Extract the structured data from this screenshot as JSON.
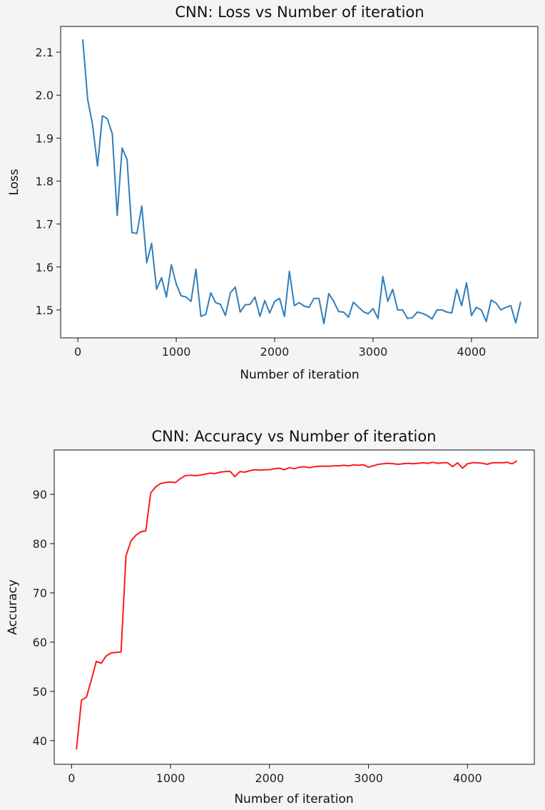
{
  "chart_data": [
    {
      "type": "line",
      "title": "CNN: Loss vs Number of iteration",
      "xlabel": "Number of iteration",
      "ylabel": "Loss",
      "xlim": [
        -175,
        4675
      ],
      "ylim": [
        1.435,
        2.16
      ],
      "xticks": [
        0,
        1000,
        2000,
        3000,
        4000
      ],
      "xtick_labels": [
        "0",
        "1000",
        "2000",
        "3000",
        "4000"
      ],
      "yticks": [
        1.5,
        1.6,
        1.7,
        1.8,
        1.9,
        2.0,
        2.1
      ],
      "ytick_labels": [
        "1.5",
        "1.6",
        "1.7",
        "1.8",
        "1.9",
        "2.0",
        "2.1"
      ],
      "grid": false,
      "color": "#2f7ebc",
      "series": [
        {
          "x": [
            50,
            100,
            150,
            200,
            250,
            300,
            350,
            400,
            450,
            500,
            550,
            600,
            650,
            700,
            750,
            800,
            850,
            900,
            950,
            1000,
            1050,
            1100,
            1150,
            1200,
            1250,
            1300,
            1350,
            1400,
            1450,
            1500,
            1550,
            1600,
            1650,
            1700,
            1750,
            1800,
            1850,
            1900,
            1950,
            2000,
            2050,
            2100,
            2150,
            2200,
            2250,
            2300,
            2350,
            2400,
            2450,
            2500,
            2550,
            2600,
            2650,
            2700,
            2750,
            2800,
            2850,
            2900,
            2950,
            3000,
            3050,
            3100,
            3150,
            3200,
            3250,
            3300,
            3350,
            3400,
            3450,
            3500,
            3550,
            3600,
            3650,
            3700,
            3750,
            3800,
            3850,
            3900,
            3950,
            4000,
            4050,
            4100,
            4150,
            4200,
            4250,
            4300,
            4350,
            4400,
            4450,
            4500
          ],
          "values": [
            2.13,
            1.99,
            1.93,
            1.835,
            1.952,
            1.945,
            1.91,
            1.72,
            1.877,
            1.85,
            1.68,
            1.678,
            1.742,
            1.61,
            1.655,
            1.548,
            1.575,
            1.53,
            1.605,
            1.56,
            1.533,
            1.53,
            1.52,
            1.595,
            1.485,
            1.49,
            1.54,
            1.517,
            1.513,
            1.487,
            1.54,
            1.553,
            1.495,
            1.512,
            1.513,
            1.53,
            1.485,
            1.522,
            1.493,
            1.52,
            1.527,
            1.485,
            1.59,
            1.51,
            1.517,
            1.509,
            1.506,
            1.527,
            1.527,
            1.468,
            1.538,
            1.52,
            1.496,
            1.495,
            1.483,
            1.518,
            1.507,
            1.496,
            1.491,
            1.503,
            1.48,
            1.578,
            1.52,
            1.548,
            1.5,
            1.5,
            1.48,
            1.482,
            1.495,
            1.492,
            1.487,
            1.479,
            1.5,
            1.5,
            1.495,
            1.493,
            1.548,
            1.51,
            1.563,
            1.487,
            1.506,
            1.5,
            1.473,
            1.523,
            1.516,
            1.5,
            1.506,
            1.51,
            1.47,
            1.519
          ]
        }
      ]
    },
    {
      "type": "line",
      "title": "CNN: Accuracy vs Number of iteration",
      "xlabel": "Number of iteration",
      "ylabel": "Accuracy",
      "xlim": [
        -175,
        4675
      ],
      "ylim": [
        35.2,
        99.0
      ],
      "xticks": [
        0,
        1000,
        2000,
        3000,
        4000
      ],
      "xtick_labels": [
        "0",
        "1000",
        "2000",
        "3000",
        "4000"
      ],
      "yticks": [
        40,
        50,
        60,
        70,
        80,
        90
      ],
      "ytick_labels": [
        "40",
        "50",
        "60",
        "70",
        "80",
        "90"
      ],
      "grid": false,
      "color": "#ff1a1a",
      "series": [
        {
          "x": [
            50,
            100,
            150,
            200,
            250,
            300,
            350,
            400,
            450,
            500,
            550,
            600,
            650,
            700,
            750,
            800,
            850,
            900,
            950,
            1000,
            1050,
            1100,
            1150,
            1200,
            1250,
            1300,
            1350,
            1400,
            1450,
            1500,
            1550,
            1600,
            1650,
            1700,
            1750,
            1800,
            1850,
            1900,
            1950,
            2000,
            2050,
            2100,
            2150,
            2200,
            2250,
            2300,
            2350,
            2400,
            2450,
            2500,
            2550,
            2600,
            2650,
            2700,
            2750,
            2800,
            2850,
            2900,
            2950,
            3000,
            3050,
            3100,
            3150,
            3200,
            3250,
            3300,
            3350,
            3400,
            3450,
            3500,
            3550,
            3600,
            3650,
            3700,
            3750,
            3800,
            3850,
            3900,
            3950,
            4000,
            4050,
            4100,
            4150,
            4200,
            4250,
            4300,
            4350,
            4400,
            4450,
            4500
          ],
          "values": [
            38.2,
            48.2,
            48.8,
            52.3,
            56.1,
            55.7,
            57.2,
            57.8,
            57.9,
            58.0,
            77.5,
            80.5,
            81.7,
            82.4,
            82.6,
            90.3,
            91.5,
            92.2,
            92.4,
            92.5,
            92.4,
            93.2,
            93.8,
            93.9,
            93.8,
            93.9,
            94.1,
            94.3,
            94.2,
            94.5,
            94.6,
            94.7,
            93.6,
            94.6,
            94.5,
            94.8,
            95.0,
            94.9,
            95.0,
            95.0,
            95.2,
            95.3,
            95.0,
            95.4,
            95.2,
            95.5,
            95.6,
            95.4,
            95.6,
            95.7,
            95.7,
            95.7,
            95.8,
            95.8,
            95.9,
            95.8,
            96.0,
            95.9,
            96.0,
            95.5,
            95.8,
            96.1,
            96.2,
            96.3,
            96.2,
            96.1,
            96.2,
            96.3,
            96.2,
            96.3,
            96.4,
            96.3,
            96.5,
            96.3,
            96.4,
            96.4,
            95.6,
            96.4,
            95.3,
            96.2,
            96.4,
            96.4,
            96.3,
            96.1,
            96.4,
            96.4,
            96.4,
            96.5,
            96.2,
            96.8
          ]
        }
      ]
    }
  ]
}
